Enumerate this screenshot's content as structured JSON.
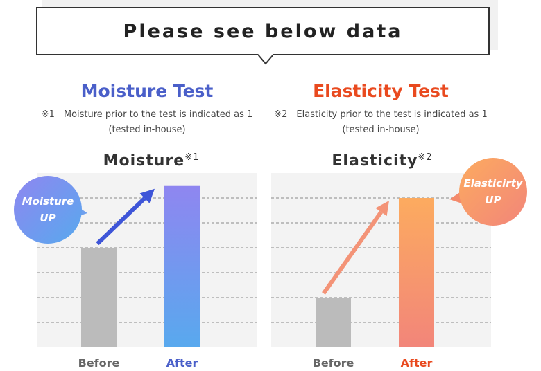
{
  "banner": {
    "text": "Please see below data"
  },
  "moisture": {
    "heading": "Moisture Test",
    "note_line1": "※1　Moisture prior to the test is indicated as 1",
    "note_line2": "(tested in-house)",
    "bubble_line1": "Moisture",
    "bubble_line2": "UP"
  },
  "elasticity": {
    "heading": "Elasticity Test",
    "note_line1": "※2　Elasticity prior to the test is indicated as 1",
    "note_line2": "(tested in-house)",
    "bubble_line1": "Elasticirty",
    "bubble_line2": "UP"
  },
  "colors": {
    "moisture_heading": "#4a5fc9",
    "elasticity_heading": "#e94a1f",
    "before_bar": "#bbbbbb",
    "moisture_after_top": "#8f86f0",
    "moisture_after_bottom": "#58a9ee",
    "elasticity_after_top": "#fcab5f",
    "elasticity_after_bottom": "#f2857a",
    "moisture_arrow": "#3e55d8",
    "elasticity_arrow": "#f39377",
    "moisture_before_label": "#666666",
    "moisture_after_label": "#4a5fc9",
    "elasticity_before_label": "#666666",
    "elasticity_after_label": "#e94a1f"
  },
  "chart_data": [
    {
      "type": "bar",
      "title": "Moisture",
      "title_mark": "※1",
      "categories": [
        "Before",
        "After"
      ],
      "values": [
        1.0,
        1.62
      ],
      "ylim": [
        0,
        1.75
      ],
      "grid": true,
      "gridlines": [
        0.25,
        0.5,
        0.75,
        1.0,
        1.25,
        1.5
      ],
      "arrow": "up-right"
    },
    {
      "type": "bar",
      "title": "Elasticity",
      "title_mark": "※2",
      "categories": [
        "Before",
        "After"
      ],
      "values": [
        1.0,
        3.0
      ],
      "ylim": [
        0,
        3.5
      ],
      "grid": true,
      "gridlines": [
        0.5,
        1.0,
        1.5,
        2.0,
        2.5,
        3.0
      ],
      "arrow": "up-right"
    }
  ]
}
